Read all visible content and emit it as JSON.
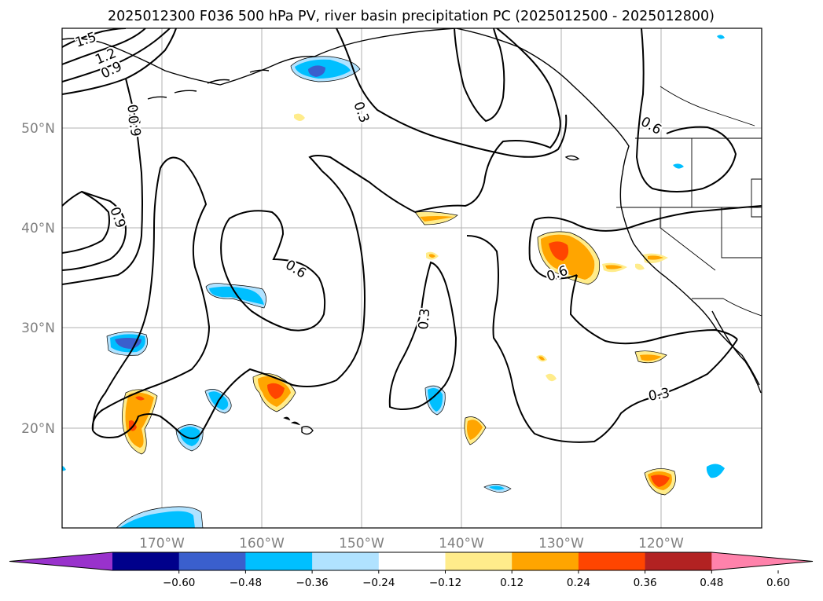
{
  "title": "2025012300 F036 500 hPa PV, river basin precipitation PC (2025012500 - 2025012800)",
  "map": {
    "projection": "PlateCarree",
    "lon_range": [
      -180,
      -110
    ],
    "lat_range": [
      10,
      60
    ],
    "lon_ticks": [
      "170°W",
      "160°W",
      "150°W",
      "140°W",
      "130°W",
      "120°W"
    ],
    "lat_ticks": [
      "50°N",
      "40°N",
      "30°N",
      "20°N"
    ],
    "gridlines": true
  },
  "pv_contour_labels": [
    "1.5",
    "1.2",
    "0.9",
    "0.6",
    "0.9",
    "0.9",
    "0.6",
    "0.3",
    "0.3",
    "0.6",
    "0.6",
    "0.3"
  ],
  "colorbar": {
    "ticks": [
      "−0.60",
      "−0.48",
      "−0.36",
      "−0.24",
      "−0.12",
      "0.12",
      "0.24",
      "0.36",
      "0.48",
      "0.60"
    ],
    "colors": [
      "#9932cc",
      "#00008b",
      "#3a5fcd",
      "#00bfff",
      "#b0e2ff",
      "#ffffff",
      "#ffec8b",
      "#ffa500",
      "#ff4500",
      "#b22222",
      "#ff82ab"
    ],
    "extend": "both"
  }
}
